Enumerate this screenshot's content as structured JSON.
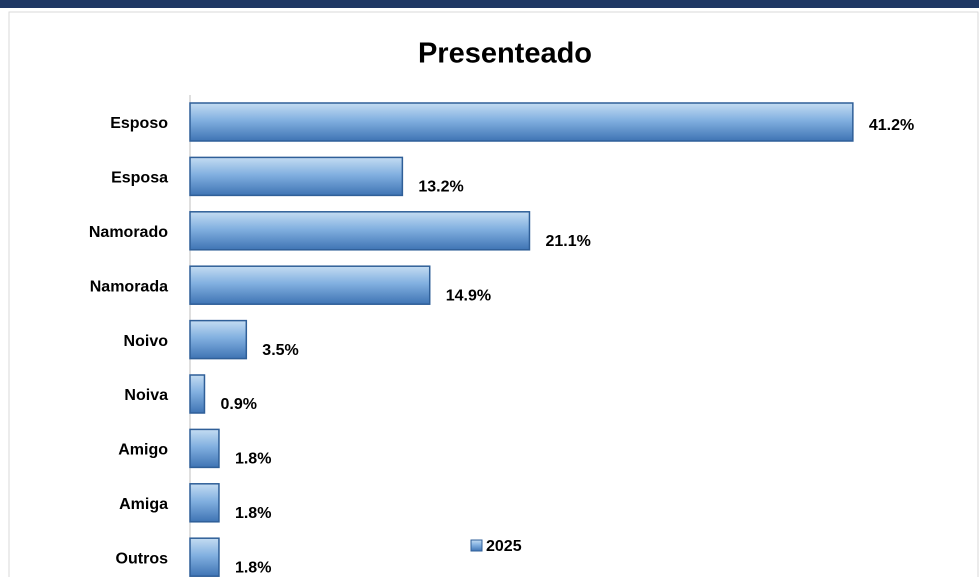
{
  "chart_data": {
    "type": "bar",
    "orientation": "horizontal",
    "title": "Presenteado",
    "categories": [
      "Esposo",
      "Esposa",
      "Namorado",
      "Namorada",
      "Noivo",
      "Noiva",
      "Amigo",
      "Amiga",
      "Outros"
    ],
    "series": [
      {
        "name": "2025",
        "color": "#4f84c4",
        "values": [
          41.2,
          13.2,
          21.1,
          14.9,
          3.5,
          0.9,
          1.8,
          1.8,
          1.8
        ],
        "value_labels": [
          "41.2%",
          "13.2%",
          "21.1%",
          "14.9%",
          "3.5%",
          "0.9%",
          "1.8%",
          "1.8%",
          "1.8%"
        ]
      }
    ],
    "xlim": [
      0,
      45
    ],
    "legend": "bottom"
  }
}
